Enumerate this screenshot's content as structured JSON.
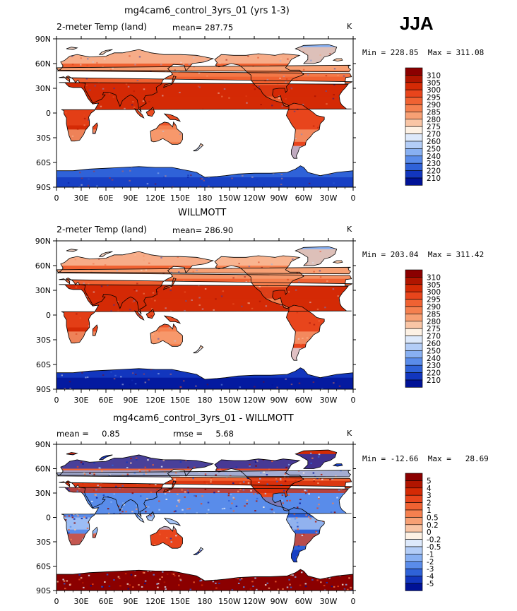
{
  "season_label": "JJA",
  "units": "K",
  "lon_ticks": [
    "0",
    "30E",
    "60E",
    "90E",
    "120E",
    "150E",
    "180",
    "150W",
    "120W",
    "90W",
    "60W",
    "30W",
    "0"
  ],
  "lat_ticks": [
    "90N",
    "60N",
    "30N",
    "0",
    "30S",
    "60S",
    "90S"
  ],
  "chart_data": [
    {
      "type": "heatmap",
      "title": "mg4cam6_control_3yrs_01 (yrs 1-3)",
      "left_text": "2-meter Temp (land)",
      "center_text": "mean= 287.75",
      "right_text": "K",
      "min_max": "Min = 228.85  Max = 311.08",
      "colorbar_levels": [
        "310",
        "305",
        "300",
        "295",
        "290",
        "285",
        "280",
        "275",
        "270",
        "260",
        "250",
        "240",
        "230",
        "220",
        "210"
      ],
      "colorbar_colors": [
        "#8b0000",
        "#b01500",
        "#d42a05",
        "#e8451c",
        "#f06232",
        "#f5804f",
        "#f7a074",
        "#f9c5a5",
        "#fdf1e4",
        "#dde9fb",
        "#b3cdf7",
        "#88b0f2",
        "#5a8cea",
        "#2f62d8",
        "#1236be",
        "#001296"
      ]
    },
    {
      "type": "heatmap",
      "title": "WILLMOTT",
      "left_text": "2-meter Temp (land)",
      "center_text": "mean= 286.90",
      "right_text": "K",
      "min_max": "Min = 203.04  Max = 311.42",
      "colorbar_levels": [
        "310",
        "305",
        "300",
        "295",
        "290",
        "285",
        "280",
        "275",
        "270",
        "260",
        "250",
        "240",
        "230",
        "220",
        "210"
      ],
      "colorbar_colors": [
        "#8b0000",
        "#b01500",
        "#d42a05",
        "#e8451c",
        "#f06232",
        "#f5804f",
        "#f7a074",
        "#f9c5a5",
        "#fdf1e4",
        "#dde9fb",
        "#b3cdf7",
        "#88b0f2",
        "#5a8cea",
        "#2f62d8",
        "#1236be",
        "#001296"
      ]
    },
    {
      "type": "heatmap",
      "title": "mg4cam6_control_3yrs_01 - WILLMOTT",
      "left_text": "mean =     0.85",
      "center_text": "rmse =     5.68",
      "right_text": "K",
      "min_max": "Min = -12.66  Max =   28.69",
      "colorbar_levels": [
        "5",
        "4",
        "3",
        "2",
        "1",
        "0.5",
        "0.2",
        "0",
        "-0.2",
        "-0.5",
        "-1",
        "-2",
        "-3",
        "-4",
        "-5"
      ],
      "colorbar_colors": [
        "#8b0000",
        "#b01500",
        "#d42a05",
        "#e8451c",
        "#f06232",
        "#f5804f",
        "#f7a074",
        "#f9c5a5",
        "#fdf1e4",
        "#dde9fb",
        "#b3cdf7",
        "#88b0f2",
        "#5a8cea",
        "#2f62d8",
        "#1236be",
        "#001296"
      ]
    }
  ]
}
